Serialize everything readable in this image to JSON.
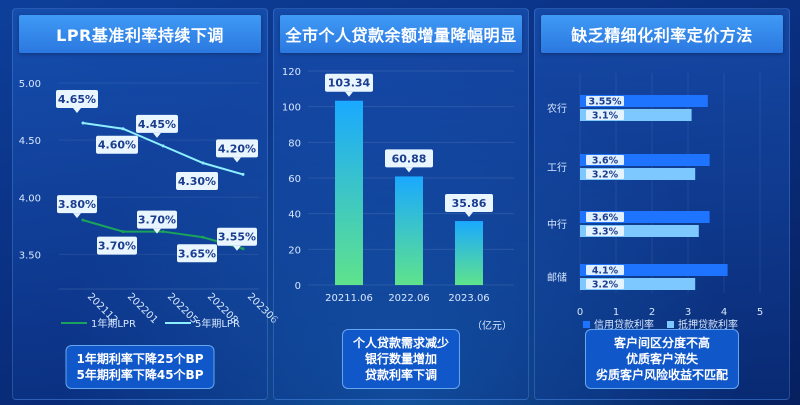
{
  "panels": {
    "lpr": {
      "title": "LPR基准利率持续下调",
      "note": [
        "1年期利率下降25个BP",
        "5年期利率下降45个BP"
      ]
    },
    "loans": {
      "title": "全市个人贷款余额增量降幅明显",
      "note": [
        "个人贷款需求减少",
        "银行数量增加",
        "贷款利率下调"
      ]
    },
    "rates": {
      "title": "缺乏精细化利率定价方法",
      "note": [
        "客户间区分度不高",
        "优质客户流失",
        "劣质客户风险收益不匹配"
      ]
    }
  },
  "colors": {
    "lpr_1y": "#1aa35a",
    "lpr_5y": "#8ef0ff",
    "bar_top": "#1aa9ff",
    "bar_bottom": "#5fe38c",
    "credit": "#1e74ff",
    "mortgage": "#7cc8ff",
    "label_bg": "#eaf6ff",
    "label_text": "#1a3d8f"
  },
  "chart_data": [
    {
      "type": "line",
      "title": "LPR基准利率持续下调",
      "x": [
        "202112",
        "202201",
        "202205",
        "202208",
        "202306"
      ],
      "ylim": [
        3.25,
        5.0
      ],
      "yticks": [
        "5.00",
        "4.50",
        "4.00",
        "3.50"
      ],
      "ytick_values": [
        5.0,
        4.5,
        4.0,
        3.5
      ],
      "series": [
        {
          "name": "1年期LPR",
          "values": [
            3.8,
            3.7,
            3.7,
            3.65,
            3.55
          ],
          "labels": [
            "3.80%",
            "3.70%",
            "3.70%",
            "3.65%",
            "3.55%"
          ]
        },
        {
          "name": "5年期LPR",
          "values": [
            4.65,
            4.6,
            4.45,
            4.3,
            4.2
          ],
          "labels": [
            "4.65%",
            "4.60%",
            "4.45%",
            "4.30%",
            "4.20%"
          ]
        }
      ],
      "legend": "bottom"
    },
    {
      "type": "bar",
      "title": "全市个人贷款余额增量降幅明显",
      "categories": [
        "20211.06",
        "2022.06",
        "2023.06"
      ],
      "values": [
        103.34,
        60.88,
        35.86
      ],
      "labels": [
        "103.34",
        "60.88",
        "35.86"
      ],
      "ylim": [
        0,
        120
      ],
      "yticks": [
        0,
        20,
        40,
        60,
        80,
        100,
        120
      ],
      "unit": "（亿元）"
    },
    {
      "type": "bar",
      "orientation": "horizontal",
      "title": "缺乏精细化利率定价方法",
      "categories": [
        "农行",
        "工行",
        "中行",
        "邮储"
      ],
      "xlim": [
        0,
        5
      ],
      "xticks": [
        0,
        1,
        2,
        3,
        4,
        5
      ],
      "series": [
        {
          "name": "信用贷款利率",
          "values": [
            3.55,
            3.6,
            3.6,
            4.1
          ],
          "labels": [
            "3.55%",
            "3.6%",
            "3.6%",
            "4.1%"
          ]
        },
        {
          "name": "抵押贷款利率",
          "values": [
            3.1,
            3.2,
            3.3,
            3.2
          ],
          "labels": [
            "3.1%",
            "3.2%",
            "3.3%",
            "3.2%"
          ]
        }
      ],
      "legend": "bottom"
    }
  ]
}
